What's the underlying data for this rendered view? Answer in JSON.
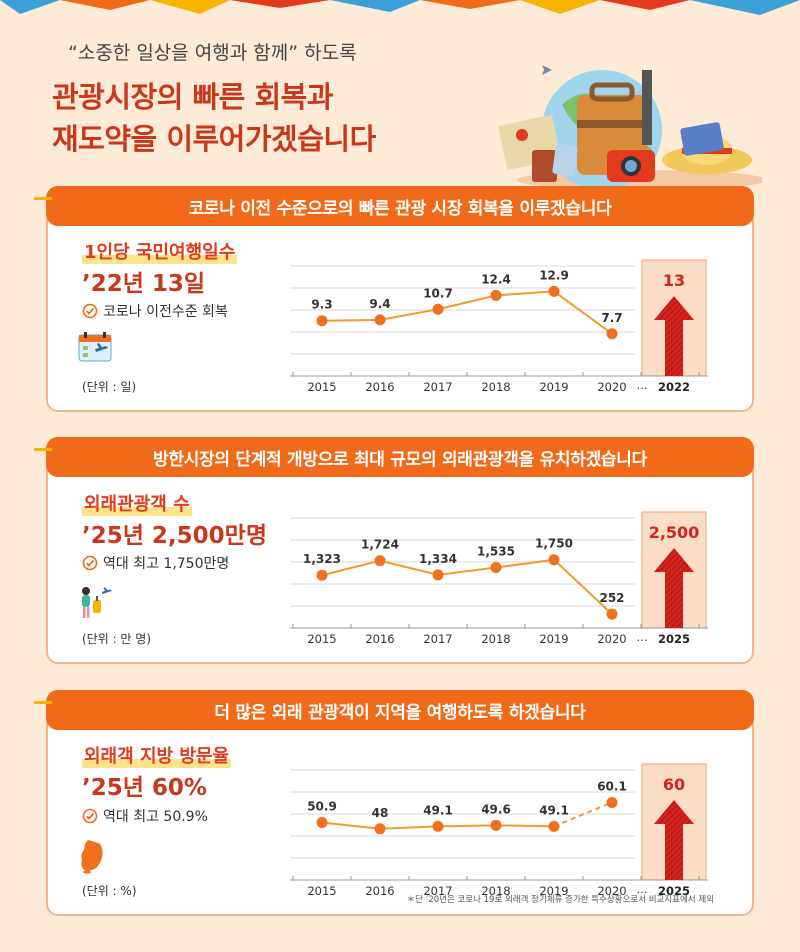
{
  "header": {
    "subtitle": "“소중한 일상을 여행과 함께” 하도록",
    "headline_line1": "관광시장의 빠른 회복과",
    "headline_line2": "재도약을 이루어가겠습니다"
  },
  "sections": [
    {
      "banner": "코로나 이전 수준으로의 빠른 관광 시장 회복을 이루겠습니다",
      "metric_label": "1인당 국민여행일수",
      "metric_value": "’22년 13일",
      "check_text": "코로나 이전수준 회복",
      "unit": "(단위 : 일)",
      "icon": "calendar-airplane-icon"
    },
    {
      "banner": "방한시장의 단계적 개방으로 최대 규모의 외래관광객을 유치하겠습니다",
      "metric_label": "외래관광객 수",
      "metric_value": "’25년 2,500만명",
      "check_text": "역대 최고 1,750만명",
      "unit": "(단위 : 만 명)",
      "icon": "traveler-icon"
    },
    {
      "banner": "더 많은 외래 관광객이 지역을 여행하도록 하겠습니다",
      "metric_label": "외래객 지방 방문율",
      "metric_value": "’25년 60%",
      "check_text": "역대 최고 50.9%",
      "unit": "(단위 : %)",
      "icon": "korea-map-icon"
    }
  ],
  "footnote": "＊단 ’20년은 코로나 19로 외래객 장기체류 증가한 특수상황으로서 비교지표에서 제외",
  "colors": {
    "accent": "#f06a1a",
    "line": "#f29a2e",
    "marker": "#f07020",
    "target_bg": "#fbdcc4",
    "arrow": "#d6231d",
    "title_red": "#c8381c"
  },
  "chart_data": [
    {
      "type": "line",
      "x": [
        "2015",
        "2016",
        "2017",
        "2018",
        "2019",
        "2020"
      ],
      "values": [
        9.3,
        9.4,
        10.7,
        12.4,
        12.9,
        7.7
      ],
      "value_labels": [
        "9.3",
        "9.4",
        "10.7",
        "12.4",
        "12.9",
        "7.7"
      ],
      "ylim": [
        4,
        16
      ],
      "grid": true,
      "target": {
        "x": "2022",
        "value": 13,
        "label": "13"
      },
      "ellipsis": "…",
      "last_segment_dashed": false
    },
    {
      "type": "line",
      "x": [
        "2015",
        "2016",
        "2017",
        "2018",
        "2019",
        "2020"
      ],
      "values": [
        1323,
        1724,
        1334,
        1535,
        1750,
        252
      ],
      "value_labels": [
        "1,323",
        "1,724",
        "1,334",
        "1,535",
        "1,750",
        "252"
      ],
      "ylim": [
        200,
        2900
      ],
      "grid": true,
      "target": {
        "x": "2025",
        "value": 2500,
        "label": "2,500"
      },
      "ellipsis": "…",
      "last_segment_dashed": false
    },
    {
      "type": "line",
      "x": [
        "2015",
        "2016",
        "2017",
        "2018",
        "2019",
        "2020"
      ],
      "values": [
        50.9,
        48,
        49.1,
        49.6,
        49.1,
        60.1
      ],
      "value_labels": [
        "50.9",
        "48",
        "49.1",
        "49.6",
        "49.1",
        "60.1"
      ],
      "ylim": [
        30,
        75
      ],
      "grid": true,
      "target": {
        "x": "2025",
        "value": 60,
        "label": "60"
      },
      "ellipsis": "…",
      "last_segment_dashed": true
    }
  ]
}
